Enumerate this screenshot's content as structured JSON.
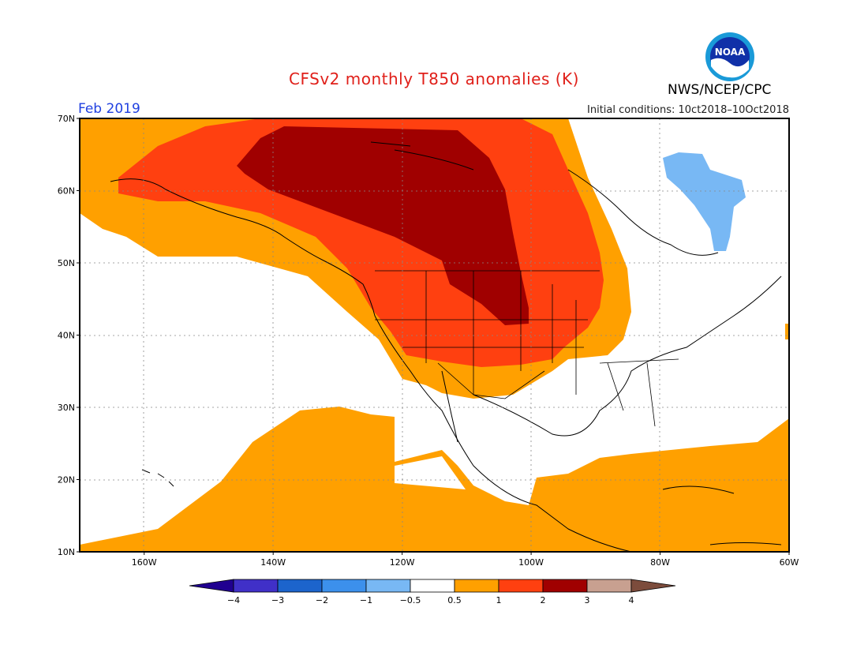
{
  "header": {
    "title": "CFSv2 monthly T850 anomalies (K)",
    "valid_month": "Feb 2019",
    "initial_conditions": "Initial conditions: 10ct2018–10Oct2018",
    "agency": "NWS/NCEP/CPC",
    "logo_text": "NOAA"
  },
  "map": {
    "lat_labels": [
      "70N",
      "60N",
      "50N",
      "40N",
      "30N",
      "20N",
      "10N"
    ],
    "lon_labels": [
      "160W",
      "140W",
      "120W",
      "100W",
      "80W",
      "60W"
    ],
    "lat_range": [
      10,
      70
    ],
    "lon_range": [
      -170,
      -60
    ]
  },
  "colorbar": {
    "colors": [
      "#200090",
      "#4030c8",
      "#1c64cc",
      "#3c90ec",
      "#78b8f4",
      "#ffffff",
      "#ffa000",
      "#ff4010",
      "#a00000",
      "#c8a090",
      "#7c4c3c"
    ],
    "labels": [
      "−4",
      "−3",
      "−2",
      "−1",
      "−0.5",
      "0.5",
      "1",
      "2",
      "3",
      "4"
    ]
  },
  "colors": {
    "warm1": "#ffa000",
    "warm2": "#ff4010",
    "warm3": "#a00000",
    "cool1": "#78b8f4"
  }
}
